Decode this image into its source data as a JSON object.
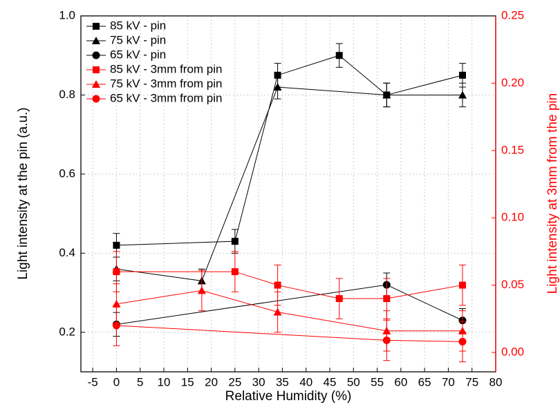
{
  "chart_data": {
    "type": "line",
    "xlabel": "Relative Humidity (%)",
    "ylabel": "Light intensity at the pin (a.u.)",
    "y2label": "Light intensity at 3mm from the pin",
    "xlim": [
      -7.5,
      80
    ],
    "xticks": [
      -5,
      0,
      5,
      10,
      15,
      20,
      25,
      30,
      35,
      40,
      45,
      50,
      55,
      60,
      65,
      70,
      75,
      80
    ],
    "ylim": [
      0.1,
      1.0
    ],
    "yticks": [
      0.2,
      0.4,
      0.6,
      0.8,
      {
        "value": 1.0,
        "label": "1.0"
      }
    ],
    "y2lim": [
      -0.0144,
      0.25
    ],
    "y2ticks": [
      {
        "value": 0,
        "label": "0.00"
      },
      0.05,
      {
        "value": 0.1,
        "label": "0.10"
      },
      0.15,
      {
        "value": 0.2,
        "label": "0.20"
      },
      0.25
    ],
    "grid": true,
    "legend": "upper left",
    "series": [
      {
        "name": "85 kV - pin",
        "color": "#000000",
        "marker": "square",
        "x": [
          0,
          25,
          34,
          47,
          57,
          73
        ],
        "values": [
          0.42,
          0.43,
          0.85,
          0.9,
          0.8,
          0.85
        ],
        "errors": [
          0.03,
          0.03,
          0.03,
          0.03,
          0.03,
          0.03
        ]
      },
      {
        "name": "75 kV - pin",
        "color": "#000000",
        "marker": "triangle",
        "x": [
          0,
          18,
          34,
          57,
          73
        ],
        "values": [
          0.36,
          0.33,
          0.82,
          0.8,
          0.8
        ],
        "errors": [
          0.03,
          0.03,
          0.03,
          0.03,
          0.03
        ]
      },
      {
        "name": "65 kV - pin",
        "color": "#000000",
        "marker": "circle",
        "x": [
          0,
          57,
          73
        ],
        "values": [
          0.22,
          0.32,
          0.23
        ],
        "errors": [
          0.03,
          0.03,
          0.03
        ]
      },
      {
        "name": "85 kV - 3mm from pin",
        "color": "#ff0000",
        "marker": "square",
        "axis": "y2",
        "x": [
          0,
          25,
          34,
          47,
          57,
          73
        ],
        "values": [
          0.06,
          0.06,
          0.05,
          0.04,
          0.04,
          0.05
        ],
        "errors": [
          0.015,
          0.015,
          0.015,
          0.015,
          0.015,
          0.015
        ]
      },
      {
        "name": "75 kV - 3mm from pin",
        "color": "#ff0000",
        "marker": "triangle",
        "axis": "y2",
        "x": [
          0,
          18,
          34,
          57,
          73
        ],
        "values": [
          0.036,
          0.046,
          0.03,
          0.016,
          0.016
        ],
        "errors": [
          0.015,
          0.015,
          0.015,
          0.015,
          0.015
        ]
      },
      {
        "name": "65 kV - 3mm from pin",
        "color": "#ff0000",
        "marker": "circle",
        "axis": "y2",
        "x": [
          0,
          57,
          73
        ],
        "values": [
          0.02,
          0.009,
          0.008
        ],
        "errors": [
          0.015,
          0.015,
          0.015
        ]
      }
    ]
  }
}
